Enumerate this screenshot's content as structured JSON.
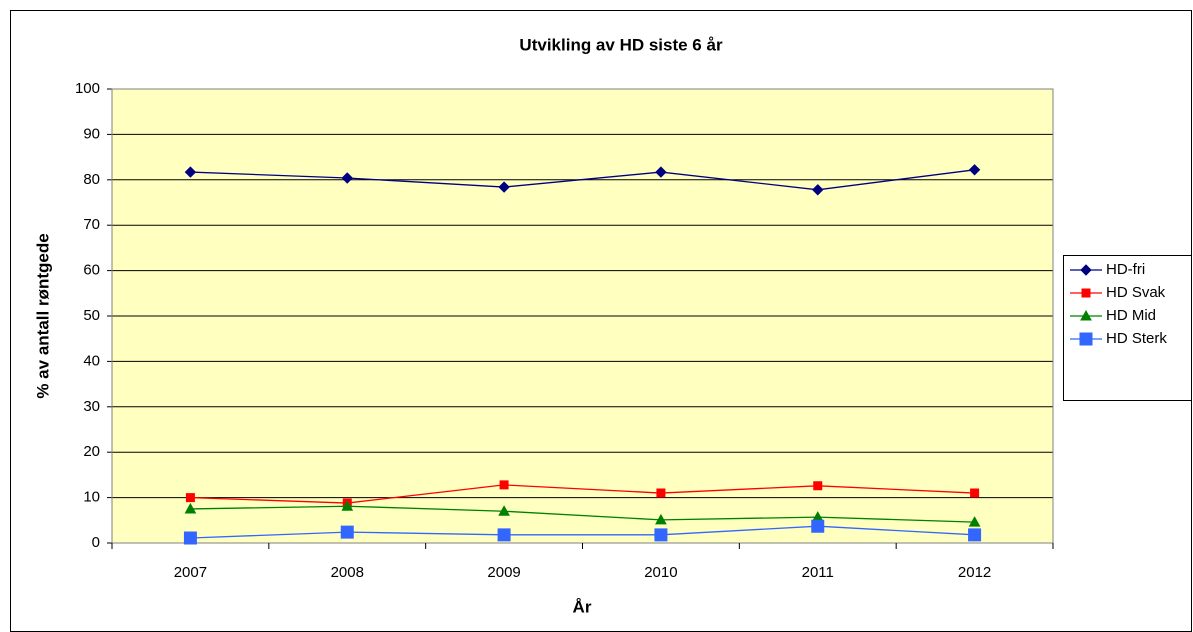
{
  "chart_data": {
    "type": "line",
    "title": "Utvikling av HD siste 6 år",
    "x_label": "År",
    "y_label": "% av antall røntgede",
    "categories": [
      "2007",
      "2008",
      "2009",
      "2010",
      "2011",
      "2012"
    ],
    "series": [
      {
        "name": "HD-fri",
        "color": "#000080",
        "marker": "diamond",
        "values": [
          81.7,
          80.4,
          78.4,
          81.7,
          77.8,
          82.2
        ]
      },
      {
        "name": "HD Svak",
        "color": "#ff0000",
        "marker": "square",
        "values": [
          10.0,
          8.8,
          12.8,
          11.0,
          12.6,
          11.0
        ]
      },
      {
        "name": "HD Mid",
        "color": "#008000",
        "marker": "triangle",
        "values": [
          7.5,
          8.1,
          7.0,
          5.1,
          5.7,
          4.6
        ]
      },
      {
        "name": "HD Sterk",
        "color": "#3366ff",
        "marker": "bigsquare",
        "values": [
          1.1,
          2.4,
          1.8,
          1.8,
          3.7,
          1.8
        ]
      }
    ],
    "ylim": [
      0,
      100
    ],
    "yticks": [
      0,
      10,
      20,
      30,
      40,
      50,
      60,
      70,
      80,
      90,
      100
    ],
    "grid": true,
    "legend": "right"
  }
}
